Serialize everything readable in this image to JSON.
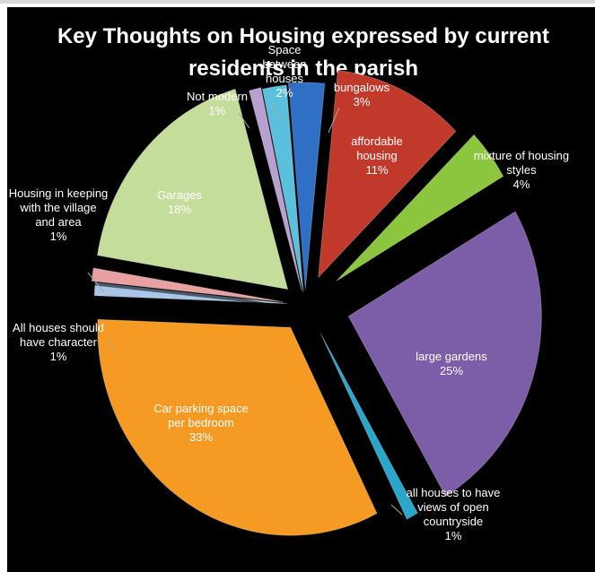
{
  "chart_data": {
    "type": "pie",
    "title_lines": [
      "Key Thoughts on Housing expressed by current",
      "residents in the parish"
    ],
    "slices": [
      {
        "label": [
          "bungalows"
        ],
        "pct_label": "3%",
        "value": 3,
        "color": "#2f6fc6"
      },
      {
        "label": [
          "affordable",
          "housing"
        ],
        "pct_label": "11%",
        "value": 11,
        "color": "#c0392b"
      },
      {
        "label": [
          "mixture of housing",
          "styles"
        ],
        "pct_label": "4%",
        "value": 4,
        "color": "#8cc63f"
      },
      {
        "label": [
          "large gardens"
        ],
        "pct_label": "25%",
        "value": 25,
        "color": "#7b5ea7"
      },
      {
        "label": [
          "all houses to have",
          "views of open",
          "countryside"
        ],
        "pct_label": "1%",
        "value": 1,
        "color": "#2aa6c9"
      },
      {
        "label": [
          "Car parking space",
          "per bedroom"
        ],
        "pct_label": "33%",
        "value": 33,
        "color": "#f59a23"
      },
      {
        "label": [
          "All houses should",
          "have character"
        ],
        "pct_label": "1%",
        "value": 1,
        "color": "#a9c6e8"
      },
      {
        "label": [
          "Housing in keeping",
          "with the village",
          "and area"
        ],
        "pct_label": "1%",
        "value": 1,
        "color": "#e8a0a0"
      },
      {
        "label": [
          "Garages"
        ],
        "pct_label": "18%",
        "value": 18,
        "color": "#c5dd9a"
      },
      {
        "label": [
          "Not modern"
        ],
        "pct_label": "1%",
        "value": 1,
        "color": "#b8a0d0"
      },
      {
        "label": [
          "Space",
          "between",
          "houses"
        ],
        "pct_label": "2%",
        "value": 2,
        "color": "#5bc0de"
      }
    ]
  }
}
